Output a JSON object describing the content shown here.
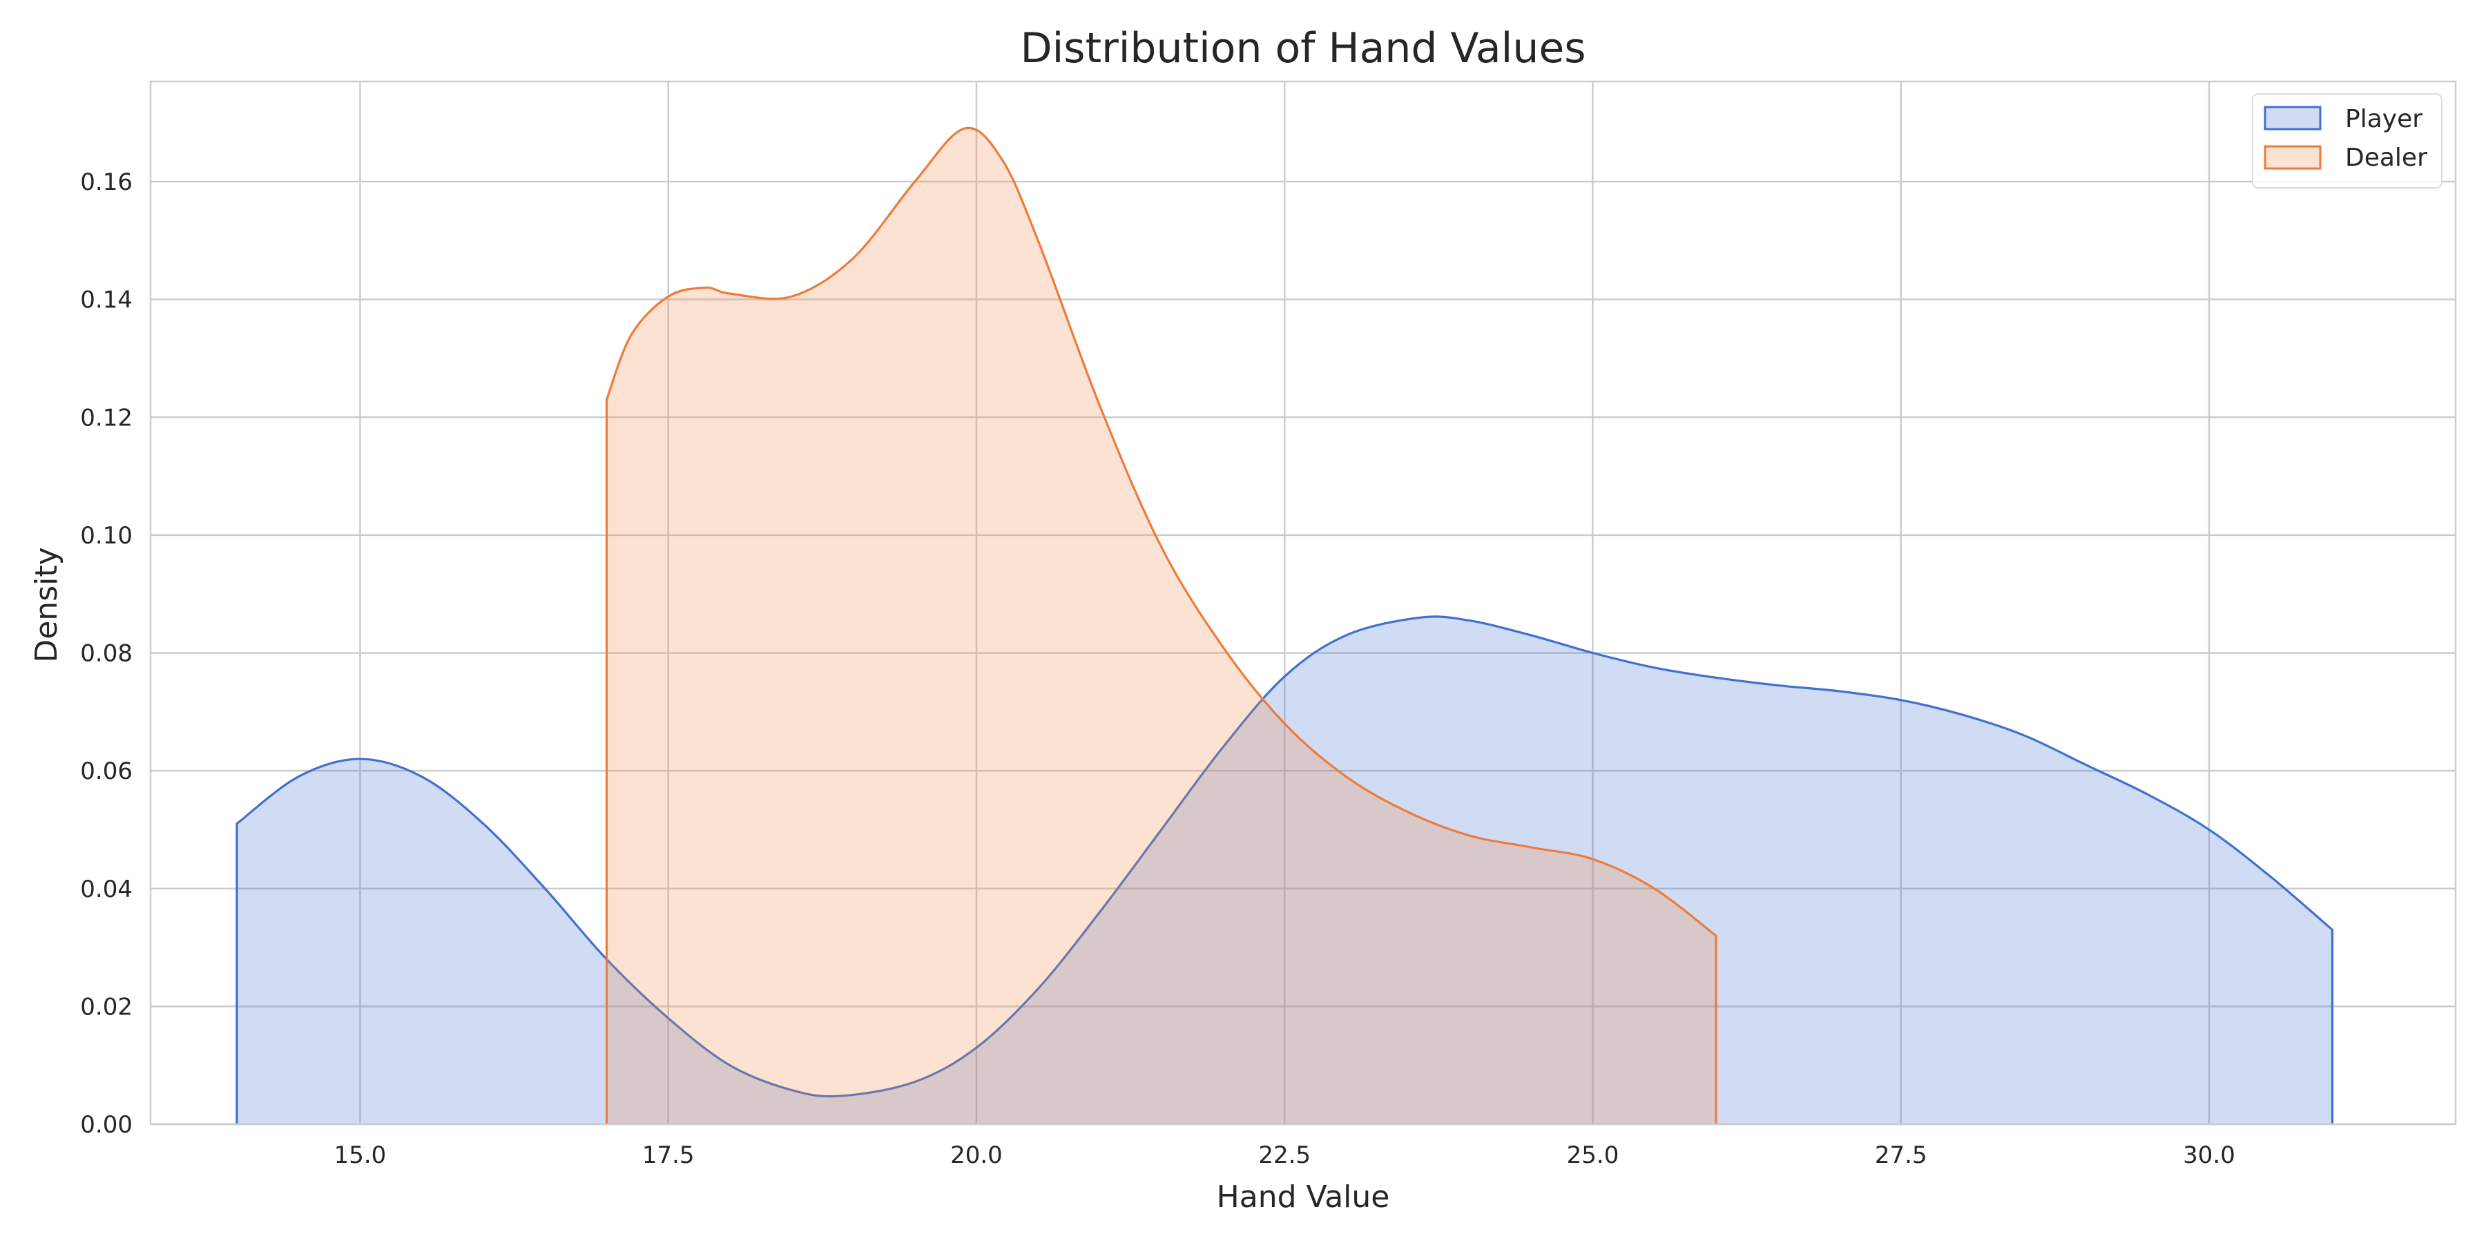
{
  "chart_data": {
    "type": "area",
    "title": "Distribution of Hand Values",
    "xlabel": "Hand Value",
    "ylabel": "Density",
    "xlim": [
      13.3,
      32.0
    ],
    "ylim": [
      0.0,
      0.177
    ],
    "xticks": [
      15.0,
      17.5,
      20.0,
      22.5,
      25.0,
      27.5,
      30.0
    ],
    "xtick_labels": [
      "15.0",
      "17.5",
      "20.0",
      "22.5",
      "25.0",
      "27.5",
      "30.0"
    ],
    "yticks": [
      0.0,
      0.02,
      0.04,
      0.06,
      0.08,
      0.1,
      0.12,
      0.14,
      0.16
    ],
    "ytick_labels": [
      "0.00",
      "0.02",
      "0.04",
      "0.06",
      "0.08",
      "0.10",
      "0.12",
      "0.14",
      "0.16"
    ],
    "grid": true,
    "legend_position": "top-right",
    "series": [
      {
        "name": "Player",
        "color": "#4170cf",
        "fill": "#4472d4",
        "x": [
          14.0,
          14.5,
          15.0,
          15.5,
          16.0,
          16.5,
          17.0,
          17.5,
          18.0,
          18.5,
          18.9,
          19.5,
          20.0,
          20.5,
          21.0,
          21.5,
          22.0,
          22.5,
          23.0,
          23.6,
          24.0,
          24.5,
          25.0,
          25.5,
          26.0,
          26.5,
          27.0,
          27.5,
          28.0,
          28.5,
          29.0,
          29.5,
          30.0,
          30.5,
          31.0
        ],
        "y": [
          0.051,
          0.059,
          0.062,
          0.059,
          0.051,
          0.04,
          0.028,
          0.018,
          0.01,
          0.0058,
          0.0048,
          0.0072,
          0.013,
          0.023,
          0.036,
          0.05,
          0.064,
          0.076,
          0.083,
          0.086,
          0.0855,
          0.083,
          0.08,
          0.0775,
          0.0758,
          0.0745,
          0.0735,
          0.072,
          0.0695,
          0.066,
          0.061,
          0.056,
          0.05,
          0.042,
          0.033
        ]
      },
      {
        "name": "Dealer",
        "color": "#ee7b3b",
        "fill": "#f08a4b",
        "x": [
          17.0,
          17.2,
          17.5,
          17.8,
          18.0,
          18.5,
          19.0,
          19.5,
          19.9,
          20.2,
          20.5,
          21.0,
          21.5,
          22.0,
          22.5,
          23.0,
          23.5,
          24.0,
          24.5,
          25.0,
          25.5,
          26.0
        ],
        "y": [
          0.123,
          0.134,
          0.1405,
          0.142,
          0.141,
          0.1405,
          0.147,
          0.16,
          0.169,
          0.164,
          0.15,
          0.122,
          0.098,
          0.081,
          0.068,
          0.059,
          0.053,
          0.049,
          0.047,
          0.045,
          0.04,
          0.032
        ]
      }
    ]
  }
}
